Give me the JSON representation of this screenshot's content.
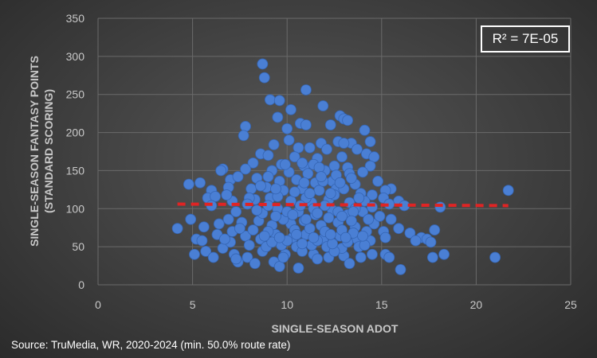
{
  "chart_data": {
    "type": "scatter",
    "title": "",
    "xlabel": "SINGLE-SEASON ADOT",
    "ylabel": [
      "SINGLE-SEASON FANTASY POINTS",
      "(STANDARD SCORING)"
    ],
    "xlim": [
      0,
      25
    ],
    "ylim": [
      0,
      350
    ],
    "x_ticks": [
      0,
      5,
      10,
      15,
      20,
      25
    ],
    "y_ticks": [
      0,
      50,
      100,
      150,
      200,
      250,
      300,
      350
    ],
    "grid": true,
    "annotation": "R² = 7E-05",
    "point_color": "#4a7fd4",
    "trendline": {
      "style": "dashed",
      "color": "#e02424",
      "x": [
        4.2,
        21.7
      ],
      "y": [
        106,
        104
      ]
    },
    "series": [
      {
        "points": [
          [
            8.7,
            290
          ],
          [
            8.8,
            272
          ],
          [
            11.0,
            256
          ],
          [
            9.1,
            243
          ],
          [
            9.6,
            242
          ],
          [
            11.9,
            235
          ],
          [
            10.2,
            230
          ],
          [
            9.5,
            220
          ],
          [
            12.8,
            222
          ],
          [
            13.0,
            218
          ],
          [
            13.2,
            216
          ],
          [
            10.7,
            212
          ],
          [
            11.0,
            210
          ],
          [
            12.3,
            210
          ],
          [
            7.8,
            208
          ],
          [
            10.0,
            205
          ],
          [
            14.1,
            203
          ],
          [
            7.7,
            196
          ],
          [
            10.1,
            190
          ],
          [
            12.7,
            188
          ],
          [
            14.4,
            188
          ],
          [
            13.4,
            186
          ],
          [
            13.0,
            186
          ],
          [
            11.8,
            186
          ],
          [
            9.3,
            184
          ],
          [
            10.6,
            180
          ],
          [
            11.2,
            180
          ],
          [
            12.1,
            178
          ],
          [
            13.7,
            178
          ],
          [
            14.2,
            172
          ],
          [
            8.6,
            172
          ],
          [
            9.0,
            170
          ],
          [
            10.4,
            168
          ],
          [
            11.6,
            166
          ],
          [
            12.9,
            168
          ],
          [
            14.6,
            168
          ],
          [
            8.2,
            160
          ],
          [
            9.7,
            158
          ],
          [
            10.9,
            156
          ],
          [
            11.4,
            158
          ],
          [
            12.5,
            156
          ],
          [
            13.2,
            154
          ],
          [
            14.4,
            156
          ],
          [
            6.6,
            152
          ],
          [
            6.5,
            150
          ],
          [
            7.8,
            152
          ],
          [
            9.2,
            150
          ],
          [
            10.1,
            148
          ],
          [
            11.1,
            146
          ],
          [
            12.0,
            150
          ],
          [
            13.3,
            146
          ],
          [
            14.0,
            148
          ],
          [
            15.5,
            126
          ],
          [
            15.2,
            124
          ],
          [
            7.0,
            138
          ],
          [
            7.4,
            142
          ],
          [
            8.4,
            140
          ],
          [
            9.6,
            136
          ],
          [
            10.5,
            138
          ],
          [
            11.5,
            134
          ],
          [
            12.4,
            136
          ],
          [
            13.6,
            132
          ],
          [
            14.8,
            136
          ],
          [
            4.8,
            132
          ],
          [
            5.4,
            134
          ],
          [
            6.0,
            124
          ],
          [
            6.9,
            128
          ],
          [
            8.1,
            126
          ],
          [
            8.9,
            128
          ],
          [
            9.8,
            124
          ],
          [
            10.8,
            126
          ],
          [
            11.7,
            124
          ],
          [
            12.6,
            126
          ],
          [
            13.9,
            120
          ],
          [
            14.5,
            118
          ],
          [
            15.1,
            114
          ],
          [
            15.9,
            110
          ],
          [
            5.8,
            114
          ],
          [
            6.2,
            116
          ],
          [
            7.1,
            110
          ],
          [
            8.3,
            112
          ],
          [
            9.1,
            114
          ],
          [
            10.2,
            110
          ],
          [
            11.3,
            108
          ],
          [
            12.2,
            112
          ],
          [
            13.3,
            108
          ],
          [
            14.1,
            110
          ],
          [
            15.4,
            106
          ],
          [
            16.2,
            104
          ],
          [
            18.1,
            102
          ],
          [
            21.7,
            124
          ],
          [
            4.9,
            86
          ],
          [
            5.6,
            76
          ],
          [
            6.4,
            80
          ],
          [
            6.9,
            86
          ],
          [
            7.6,
            82
          ],
          [
            8.5,
            84
          ],
          [
            9.2,
            78
          ],
          [
            10.2,
            80
          ],
          [
            10.9,
            84
          ],
          [
            11.8,
            78
          ],
          [
            12.7,
            82
          ],
          [
            13.6,
            76
          ],
          [
            14.6,
            80
          ],
          [
            15.1,
            70
          ],
          [
            15.5,
            86
          ],
          [
            15.9,
            74
          ],
          [
            16.5,
            68
          ],
          [
            17.1,
            62
          ],
          [
            17.4,
            60
          ],
          [
            17.8,
            72
          ],
          [
            4.2,
            74
          ],
          [
            5.2,
            60
          ],
          [
            5.5,
            58
          ],
          [
            6.3,
            66
          ],
          [
            7.1,
            70
          ],
          [
            7.8,
            64
          ],
          [
            8.6,
            60
          ],
          [
            9.4,
            66
          ],
          [
            10.3,
            62
          ],
          [
            11.0,
            66
          ],
          [
            11.9,
            60
          ],
          [
            12.8,
            64
          ],
          [
            13.7,
            60
          ],
          [
            14.4,
            58
          ],
          [
            15.2,
            62
          ],
          [
            16.8,
            58
          ],
          [
            17.6,
            56
          ],
          [
            5.1,
            40
          ],
          [
            5.7,
            44
          ],
          [
            6.1,
            36
          ],
          [
            6.6,
            48
          ],
          [
            7.2,
            40
          ],
          [
            7.9,
            36
          ],
          [
            8.7,
            44
          ],
          [
            9.3,
            30
          ],
          [
            9.6,
            24
          ],
          [
            9.9,
            40
          ],
          [
            10.6,
            22
          ],
          [
            11.4,
            40
          ],
          [
            12.2,
            36
          ],
          [
            13.0,
            38
          ],
          [
            13.9,
            36
          ],
          [
            14.5,
            40
          ],
          [
            15.2,
            40
          ],
          [
            15.4,
            36
          ],
          [
            16.0,
            20
          ],
          [
            17.7,
            36
          ],
          [
            18.3,
            40
          ],
          [
            21.0,
            36
          ],
          [
            6.0,
            104
          ],
          [
            7.3,
            96
          ],
          [
            8.7,
            94
          ],
          [
            9.5,
            100
          ],
          [
            10.6,
            96
          ],
          [
            11.5,
            92
          ],
          [
            12.4,
            98
          ],
          [
            13.2,
            92
          ],
          [
            14.0,
            96
          ],
          [
            14.9,
            90
          ],
          [
            6.8,
            118
          ],
          [
            8.0,
            114
          ],
          [
            9.5,
            116
          ],
          [
            11.0,
            114
          ],
          [
            12.5,
            118
          ],
          [
            13.8,
            114
          ],
          [
            7.5,
            74
          ],
          [
            8.2,
            72
          ],
          [
            9.0,
            70
          ],
          [
            9.8,
            86
          ],
          [
            10.4,
            72
          ],
          [
            11.2,
            74
          ],
          [
            12.0,
            70
          ],
          [
            12.9,
            72
          ],
          [
            13.5,
            68
          ],
          [
            14.2,
            70
          ],
          [
            7.0,
            56
          ],
          [
            8.0,
            52
          ],
          [
            8.9,
            50
          ],
          [
            9.7,
            52
          ],
          [
            10.5,
            50
          ],
          [
            11.3,
            52
          ],
          [
            12.1,
            50
          ],
          [
            12.9,
            48
          ],
          [
            13.8,
            50
          ],
          [
            6.7,
            60
          ],
          [
            7.4,
            30
          ],
          [
            8.3,
            28
          ],
          [
            9.8,
            36
          ],
          [
            10.8,
            44
          ],
          [
            11.6,
            34
          ],
          [
            12.5,
            44
          ],
          [
            13.3,
            28
          ],
          [
            7.3,
            34
          ],
          [
            10.0,
            96
          ],
          [
            10.7,
            104
          ],
          [
            11.4,
            100
          ],
          [
            12.0,
            104
          ],
          [
            12.7,
            96
          ],
          [
            13.6,
            100
          ],
          [
            14.5,
            102
          ],
          [
            9.0,
            104
          ],
          [
            8.4,
            98
          ],
          [
            7.9,
            106
          ],
          [
            9.9,
            158
          ],
          [
            10.8,
            160
          ],
          [
            11.7,
            154
          ],
          [
            12.6,
            144
          ],
          [
            13.4,
            140
          ],
          [
            11.2,
            120
          ],
          [
            10.4,
            122
          ],
          [
            9.4,
            126
          ],
          [
            8.6,
            130
          ],
          [
            13.0,
            126
          ],
          [
            12.3,
            120
          ],
          [
            11.9,
            136
          ],
          [
            9.2,
            56
          ],
          [
            10.0,
            58
          ],
          [
            10.8,
            54
          ],
          [
            11.6,
            58
          ],
          [
            12.4,
            54
          ],
          [
            13.2,
            56
          ],
          [
            14.1,
            52
          ],
          [
            8.8,
            64
          ],
          [
            9.6,
            62
          ],
          [
            10.5,
            66
          ],
          [
            11.4,
            62
          ],
          [
            12.3,
            66
          ],
          [
            13.1,
            62
          ],
          [
            14.0,
            64
          ],
          [
            10.9,
            134
          ],
          [
            11.8,
            142
          ],
          [
            12.8,
            134
          ],
          [
            9.0,
            142
          ],
          [
            13.5,
            96
          ],
          [
            11.0,
            86
          ],
          [
            12.2,
            88
          ],
          [
            13.4,
            84
          ],
          [
            9.4,
            90
          ],
          [
            10.3,
            92
          ],
          [
            11.6,
            94
          ],
          [
            12.9,
            90
          ],
          [
            14.3,
            86
          ]
        ]
      }
    ]
  },
  "source_text": "Source: TruMedia, WR, 2020-2024 (min. 50.0% route rate)"
}
